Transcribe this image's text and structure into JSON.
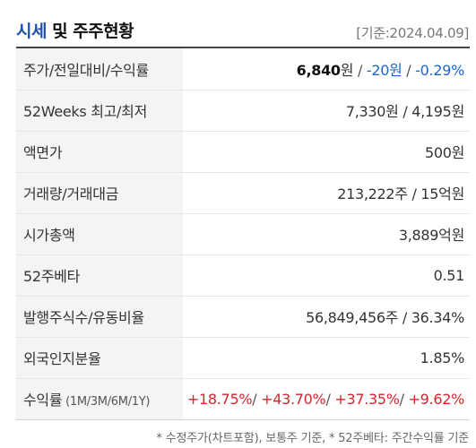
{
  "header": {
    "title_accent": "시세",
    "title_rest": " 및 주주현황",
    "date": "[기준:2024.04.09]"
  },
  "rows": {
    "price": {
      "label": "주가/전일대비/수익률",
      "price": "6,840",
      "price_unit": "원",
      "sep1": " / ",
      "change": "-20원",
      "sep2": " / ",
      "change_rate": "-0.29%"
    },
    "week52": {
      "label": "52Weeks 최고/최저",
      "value": "7,330원 / 4,195원"
    },
    "par_value": {
      "label": "액면가",
      "value": "500원"
    },
    "volume": {
      "label": "거래량/거래대금",
      "value": "213,222주 / 15억원"
    },
    "market_cap": {
      "label": "시가총액",
      "value": "3,889억원"
    },
    "beta52": {
      "label": "52주베타",
      "value": "0.51"
    },
    "shares": {
      "label": "발행주식수/유동비율",
      "value": "56,849,456주 / 36.34%"
    },
    "foreign": {
      "label": "외국인지분율",
      "value": "1.85%"
    },
    "returns": {
      "label": "수익률",
      "label_sub": " (1M/3M/6M/1Y)",
      "r1m": "+18.75%",
      "r3m": "+43.70%",
      "r6m": "+37.35%",
      "r1y": "+9.62%",
      "sep": "/ "
    }
  },
  "footnote": "* 수정주가(차트포함), 보통주 기준, * 52주베타: 주간수익률 기준",
  "colors": {
    "accent_title": "#1f4fb5",
    "negative": "#1a66c9",
    "positive": "#d8232a",
    "label_bg": "#f4f4f4"
  }
}
